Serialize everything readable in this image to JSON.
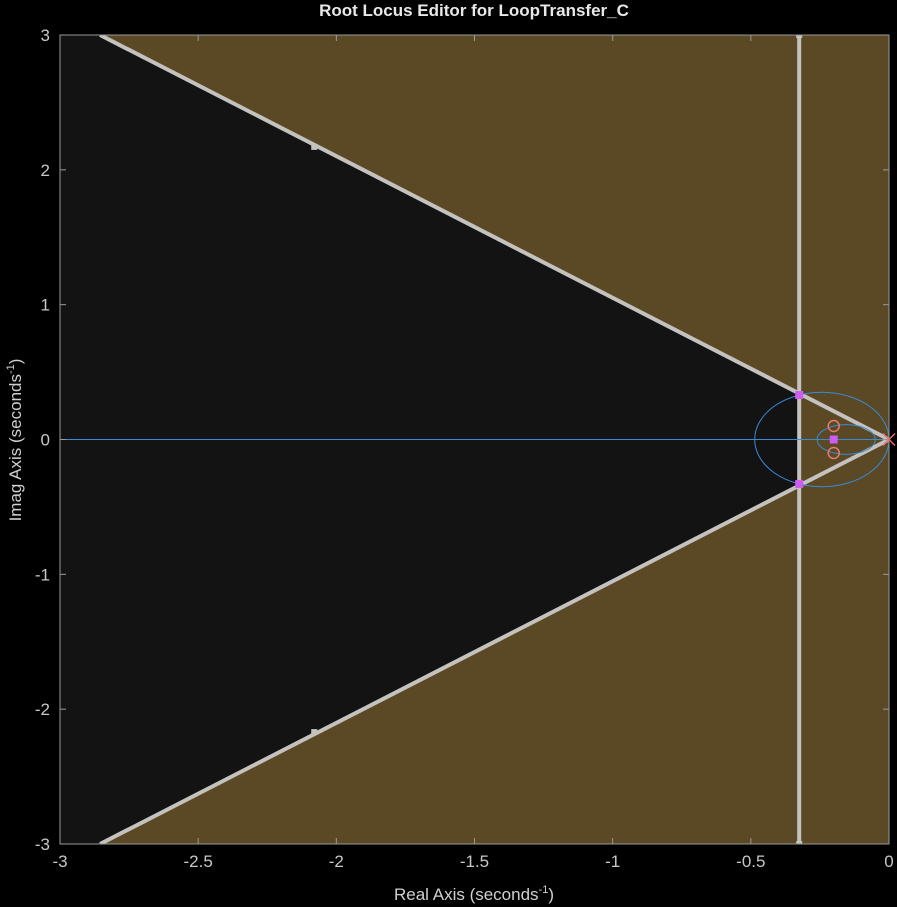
{
  "chart_data": {
    "type": "scatter",
    "title": "Root Locus Editor for LoopTransfer_C",
    "xlabel": "Real Axis (seconds",
    "xlabel_sup": "-1",
    "xlabel_end": ")",
    "ylabel": "Imag Axis (seconds",
    "ylabel_sup": "-1",
    "ylabel_end": ")",
    "xlim": [
      -3,
      0
    ],
    "ylim": [
      -3,
      3
    ],
    "x_ticks": [
      -3,
      -2.5,
      -2,
      -1.5,
      -1,
      -0.5,
      0
    ],
    "y_ticks": [
      -3,
      -2,
      -1,
      0,
      1,
      2,
      3
    ],
    "x_tick_labels": [
      "-3",
      "-2.5",
      "-2",
      "-1.5",
      "-1",
      "-0.5",
      "0"
    ],
    "y_tick_labels": [
      "-3",
      "-2",
      "-1",
      "0",
      "1",
      "2",
      "3"
    ],
    "grid": false,
    "colors": {
      "background": "#000000",
      "axes_face": "#131313",
      "region": "#5b4825",
      "constraint": "#c4c2bf",
      "locus": "#3a8ad6",
      "pole": "#ea6d6d",
      "zero": "#ea7c6c",
      "closed_loop": "#cf5cf0",
      "text": "#c8c8c8",
      "title": "#e8e8e8"
    },
    "design_constraints": {
      "settling_time_boundary_real": -0.325,
      "damping_boundary": [
        {
          "x": -2.855,
          "y": 3
        },
        {
          "x": 0,
          "y": 0
        },
        {
          "x": -2.855,
          "y": -3
        }
      ],
      "boundary_handles": [
        {
          "x": -2.08,
          "y": 2.17
        },
        {
          "x": -2.08,
          "y": -2.17
        },
        {
          "x": -0.325,
          "y": 3
        },
        {
          "x": -0.325,
          "y": -3
        }
      ]
    },
    "locus": {
      "real_axis_branch": [
        [
          -3,
          0
        ],
        [
          0,
          0
        ]
      ],
      "outer_loop": {
        "center": -0.243,
        "radius_x": 0.243,
        "radius_y": 0.35
      },
      "inner_loop": {
        "center": -0.155,
        "radius_x": 0.105,
        "radius_y": 0.11
      }
    },
    "open_loop_poles": [
      {
        "x": 0,
        "y": 0
      }
    ],
    "open_loop_zeros": [
      {
        "x": -0.2,
        "y": 0.1
      },
      {
        "x": -0.2,
        "y": -0.1
      }
    ],
    "closed_loop_poles": [
      {
        "x": -0.325,
        "y": 0.33
      },
      {
        "x": -0.325,
        "y": -0.33
      },
      {
        "x": -0.2,
        "y": 0
      }
    ]
  }
}
